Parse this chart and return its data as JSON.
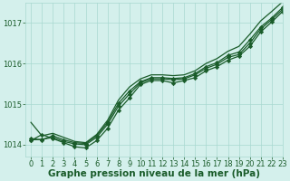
{
  "background_color": "#d4f0ec",
  "grid_color": "#a8d8d0",
  "line_color": "#1a5c2a",
  "text_color": "#1a5c2a",
  "xlabel": "Graphe pression niveau de la mer (hPa)",
  "ylim": [
    1013.7,
    1017.5
  ],
  "xlim": [
    -0.5,
    23
  ],
  "yticks": [
    1014,
    1015,
    1016,
    1017
  ],
  "xticks": [
    0,
    1,
    2,
    3,
    4,
    5,
    6,
    7,
    8,
    9,
    10,
    11,
    12,
    13,
    14,
    15,
    16,
    17,
    18,
    19,
    20,
    21,
    22,
    23
  ],
  "series": [
    {
      "x": [
        0,
        1,
        2,
        3,
        4,
        5,
        6,
        7,
        8,
        9,
        10,
        11,
        12,
        13,
        14,
        15,
        16,
        17,
        18,
        19,
        20,
        21,
        22,
        23
      ],
      "y": [
        1014.1,
        1014.25,
        1014.15,
        1014.05,
        1013.95,
        1013.92,
        1014.1,
        1014.4,
        1014.85,
        1015.15,
        1015.48,
        1015.58,
        1015.58,
        1015.52,
        1015.58,
        1015.65,
        1015.82,
        1015.92,
        1016.08,
        1016.18,
        1016.42,
        1016.78,
        1017.02,
        1017.28
      ],
      "has_markers": true
    },
    {
      "x": [
        0,
        1,
        2,
        3,
        4,
        5,
        6,
        7,
        8,
        9,
        10,
        11,
        12,
        13,
        14,
        15,
        16,
        17,
        18,
        19,
        20,
        21,
        22,
        23
      ],
      "y": [
        1014.12,
        1014.13,
        1014.18,
        1014.08,
        1014.02,
        1014.0,
        1014.18,
        1014.5,
        1014.95,
        1015.25,
        1015.52,
        1015.62,
        1015.62,
        1015.6,
        1015.62,
        1015.72,
        1015.88,
        1015.98,
        1016.15,
        1016.22,
        1016.5,
        1016.85,
        1017.08,
        1017.33
      ],
      "has_markers": true
    },
    {
      "x": [
        0,
        1,
        2,
        3,
        4,
        5,
        6,
        7,
        8,
        9,
        10,
        11,
        12,
        13,
        14,
        15,
        16,
        17,
        18,
        19,
        20,
        21,
        22,
        23
      ],
      "y": [
        1014.15,
        1014.12,
        1014.22,
        1014.12,
        1014.05,
        1014.03,
        1014.22,
        1014.55,
        1015.02,
        1015.32,
        1015.55,
        1015.65,
        1015.65,
        1015.63,
        1015.65,
        1015.75,
        1015.92,
        1016.02,
        1016.2,
        1016.28,
        1016.58,
        1016.9,
        1017.12,
        1017.38
      ],
      "has_markers": true
    },
    {
      "x": [
        0,
        1,
        2,
        3,
        4,
        5,
        6,
        7,
        8,
        9,
        10,
        11,
        12,
        13,
        14,
        15,
        16,
        17,
        18,
        19,
        20,
        21,
        22,
        23
      ],
      "y": [
        1014.55,
        1014.22,
        1014.28,
        1014.18,
        1014.08,
        1014.05,
        1014.25,
        1014.6,
        1015.1,
        1015.42,
        1015.62,
        1015.72,
        1015.72,
        1015.7,
        1015.72,
        1015.82,
        1016.0,
        1016.12,
        1016.3,
        1016.42,
        1016.72,
        1017.05,
        1017.28,
        1017.52
      ],
      "has_markers": false
    }
  ],
  "marker": "D",
  "markersize": 2.2,
  "linewidth": 0.9,
  "xlabel_fontsize": 7.5,
  "tick_fontsize": 6.0
}
